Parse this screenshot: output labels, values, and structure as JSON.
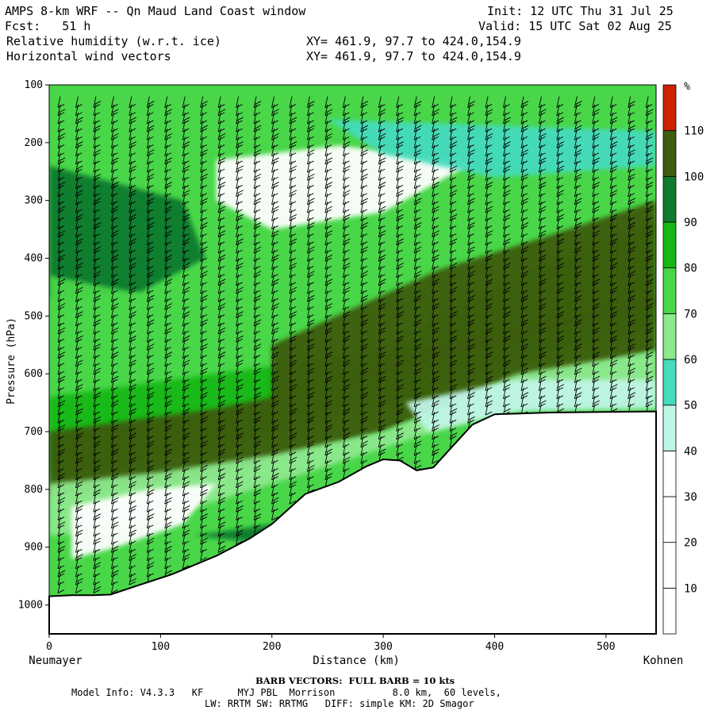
{
  "header": {
    "title_left": "AMPS 8-km WRF -- Qn Maud Land Coast window",
    "forecast": "Fcst:   51 h",
    "init": "Init: 12 UTC Thu 31 Jul 25",
    "valid": "Valid: 15 UTC Sat 02 Aug 25",
    "field1": "Relative humidity (w.r.t. ice)",
    "field2": "Horizontal wind vectors",
    "xy1": "XY= 461.9, 97.7 to 424.0,154.9",
    "xy2": "XY= 461.9, 97.7 to 424.0,154.9"
  },
  "chart_data": {
    "type": "heatmap",
    "title": "Relative humidity (w.r.t. ice)",
    "xlabel": "Distance (km)",
    "ylabel": "Pressure (hPa)",
    "xlim": [
      0,
      545
    ],
    "ylim": [
      1050,
      100
    ],
    "x_ticks": [
      0,
      100,
      200,
      300,
      400,
      500
    ],
    "y_ticks": [
      100,
      200,
      300,
      400,
      500,
      600,
      700,
      800,
      900,
      1000
    ],
    "x_endpoints": {
      "left": "Neumayer",
      "right": "Kohnen"
    },
    "colorbar": {
      "unit": "%",
      "levels": [
        10,
        20,
        30,
        40,
        50,
        60,
        70,
        80,
        90,
        100,
        110
      ],
      "colors": [
        "#ffffff",
        "#ffffff",
        "#ffffff",
        "#bff5e6",
        "#45dbbd",
        "#8ee88e",
        "#49d649",
        "#16b816",
        "#0f7a2d",
        "#3d5c0f",
        "#cc2200"
      ]
    },
    "terrain_surface": {
      "x_km": [
        0,
        20,
        40,
        55,
        80,
        110,
        150,
        180,
        200,
        230,
        260,
        285,
        300,
        315,
        330,
        345,
        360,
        380,
        400,
        450,
        500,
        545
      ],
      "p_hPa": [
        985,
        983,
        983,
        982,
        966,
        947,
        915,
        885,
        860,
        808,
        787,
        760,
        748,
        750,
        767,
        762,
        730,
        688,
        670,
        667,
        666,
        665
      ]
    },
    "wind_barbs": "BARB VECTORS:  FULL BARB = 10 kts"
  },
  "footer": {
    "barb_note": "BARB VECTORS:  FULL BARB = 10 kts",
    "model_line": "Model Info: V4.3.3   KF      MYJ PBL  Morrison          8.0 km,  60 levels,",
    "physics_line": "LW: RRTM SW: RRTMG   DIFF: simple KM: 2D Smagor"
  }
}
